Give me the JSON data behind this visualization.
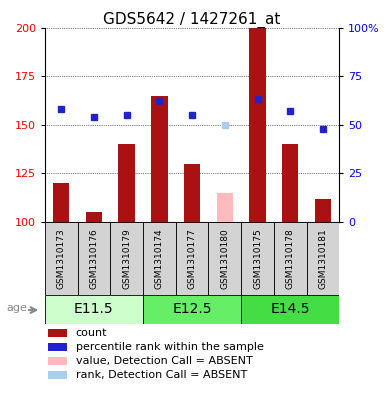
{
  "title": "GDS5642 / 1427261_at",
  "samples": [
    "GSM1310173",
    "GSM1310176",
    "GSM1310179",
    "GSM1310174",
    "GSM1310177",
    "GSM1310180",
    "GSM1310175",
    "GSM1310178",
    "GSM1310181"
  ],
  "groups": [
    {
      "label": "E11.5",
      "indices": [
        0,
        1,
        2
      ],
      "color": "#ccffcc"
    },
    {
      "label": "E12.5",
      "indices": [
        3,
        4,
        5
      ],
      "color": "#66ee66"
    },
    {
      "label": "E14.5",
      "indices": [
        6,
        7,
        8
      ],
      "color": "#44dd44"
    }
  ],
  "count_values": [
    120,
    105,
    140,
    165,
    130,
    null,
    200,
    140,
    112
  ],
  "count_absent": [
    null,
    null,
    null,
    null,
    null,
    115,
    null,
    null,
    null
  ],
  "percentile_values": [
    158,
    154,
    155,
    162,
    155,
    null,
    163,
    157,
    148
  ],
  "percentile_absent": [
    null,
    null,
    null,
    null,
    null,
    150,
    null,
    null,
    null
  ],
  "ylim": [
    100,
    200
  ],
  "left_yticks": [
    100,
    125,
    150,
    175,
    200
  ],
  "right_yticks": [
    0,
    25,
    50,
    75,
    100
  ],
  "right_yticklabels": [
    "0",
    "25",
    "50",
    "75",
    "100%"
  ],
  "bar_color": "#aa1111",
  "absent_bar_color": "#ffbbbb",
  "dot_color": "#2222cc",
  "absent_dot_color": "#aaccee",
  "bar_width": 0.5,
  "title_fontsize": 11,
  "tick_fontsize": 8,
  "label_fontsize": 6.5,
  "legend_fontsize": 8,
  "group_label_fontsize": 10,
  "cell_color": "#d3d3d3",
  "age_color": "#888888"
}
